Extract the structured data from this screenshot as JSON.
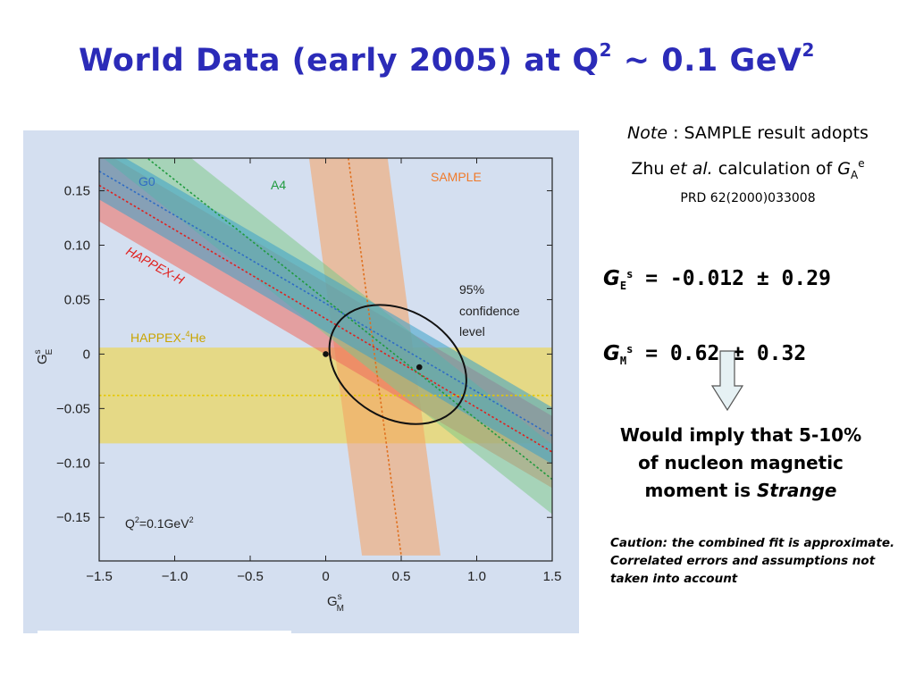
{
  "slide": {
    "title_main": "World Data (early 2005) at Q",
    "title_sup1": "2",
    "title_mid": " ~ 0.1 GeV",
    "title_sup2": "2"
  },
  "notes": {
    "line1_italic": "Note",
    "line1_rest": " : SAMPLE result adopts",
    "line2_a": "Zhu ",
    "line2_italic": "et al.",
    "line2_b": "  calculation of ",
    "line2_G": "G",
    "line2_sub": "A",
    "line2_sup": "e",
    "line3": "PRD 62(2000)033008"
  },
  "results": {
    "ge_symbol": "G",
    "ge_sub": "E",
    "ge_sup": "s",
    "ge_value": " = -0.012 ± 0.29",
    "gm_symbol": "G",
    "gm_sub": "M",
    "gm_sup": "s",
    "gm_value": " = 0.62 ± 0.32"
  },
  "implication": {
    "line1": "Would imply that 5-10%",
    "line2": "of nucleon magnetic",
    "line3_a": "moment is ",
    "line3_italic": "Strange"
  },
  "caution": {
    "text": "Caution: the combined fit is approximate.  Correlated errors and assumptions not taken into account"
  },
  "colors": {
    "panel_bg": "#d4dff0",
    "g0": "#2f6cc4",
    "a4": "#1f9a3e",
    "sample": "#f07a2a",
    "happex_h": "#e0201e",
    "happex_he": "#f3d330",
    "title": "#2b2bb8"
  },
  "chart_data": {
    "type": "scatter",
    "x_label_main": "G",
    "x_label_sup": "s",
    "x_label_sub": "M",
    "y_label_main": "G",
    "y_label_sup": "s",
    "y_label_sub": "E",
    "xlim": [
      -1.5,
      1.5
    ],
    "ylim": [
      -0.19,
      0.18
    ],
    "x_ticks": [
      -1.5,
      -1.0,
      -0.5,
      0,
      0.5,
      1.0,
      1.5
    ],
    "x_tick_labels": [
      "−1.5",
      "−1.0",
      "−0.5",
      "0",
      "0.5",
      "1.0",
      "1.5"
    ],
    "y_ticks": [
      0.15,
      0.1,
      0.05,
      0,
      -0.05,
      -0.1,
      -0.15
    ],
    "y_tick_labels": [
      "0.15",
      "0.10",
      "0.05",
      "0",
      "−0.05",
      "−0.10",
      "−0.15"
    ],
    "grid": false,
    "series": [
      {
        "name": "HAPPEX-⁴He",
        "kind": "band",
        "center": [
          [
            -1.5,
            -0.038
          ],
          [
            1.5,
            -0.038
          ]
        ],
        "halfwidth_y": 0.044,
        "color": "#f3d330"
      },
      {
        "name": "SAMPLE",
        "kind": "band",
        "center": [
          [
            0.15,
            0.18
          ],
          [
            0.5,
            -0.185
          ]
        ],
        "halfwidth_x": 0.26,
        "color": "#f5a060"
      },
      {
        "name": "HAPPEX-H",
        "kind": "band",
        "center": [
          [
            -1.5,
            0.155
          ],
          [
            1.5,
            -0.09
          ]
        ],
        "halfwidth_y": 0.033,
        "color": "#ef6a5e"
      },
      {
        "name": "A4",
        "kind": "band",
        "center": [
          [
            -1.5,
            0.215
          ],
          [
            1.5,
            -0.115
          ]
        ],
        "halfwidth_y": 0.032,
        "color": "#7fc98a"
      },
      {
        "name": "G0",
        "kind": "band",
        "center": [
          [
            -1.5,
            0.168
          ],
          [
            1.5,
            -0.075
          ]
        ],
        "halfwidth_y": 0.026,
        "color": "#3aa0c8"
      }
    ],
    "points": [
      {
        "x": 0.0,
        "y": 0.0
      },
      {
        "x": 0.62,
        "y": -0.012
      }
    ],
    "ellipse": {
      "cx": 0.62,
      "cy": -0.012,
      "sx": 0.62,
      "sy": 0.075,
      "angle_deg": -28
    },
    "annotations": {
      "g0": "G0",
      "a4": "A4",
      "sample": "SAMPLE",
      "happex_h": "HAPPEX-H",
      "happex_he_main": "HAPPEX-",
      "happex_he_sup": "4",
      "happex_he_tail": "He",
      "cl_line1": "95%",
      "cl_line2": "confidence",
      "cl_line3": "level",
      "q2_main": "Q",
      "q2_sup": "2",
      "q2_mid": "=0.1GeV",
      "q2_sup2": "2"
    }
  }
}
